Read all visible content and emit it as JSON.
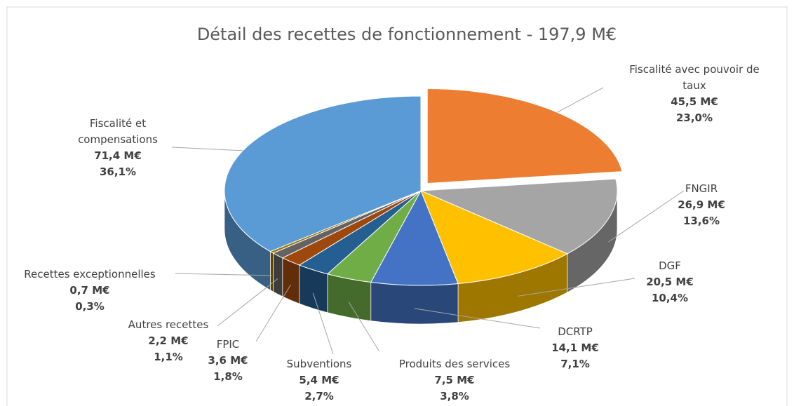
{
  "chart_data": {
    "type": "pie3d",
    "title": "Détail des recettes de fonctionnement - 197,9 M€",
    "categories": [
      "Fiscalité avec pouvoir de taux",
      "FNGIR",
      "DGF",
      "DCRTP",
      "Produits des services",
      "Subventions",
      "FPIC",
      "Autres recettes",
      "Recettes exceptionnelles",
      "Fiscalité et compensations"
    ],
    "values": [
      45.5,
      26.9,
      20.5,
      14.1,
      7.5,
      5.4,
      3.6,
      2.2,
      0.7,
      71.4
    ],
    "value_labels": [
      "45,5 M€",
      "26,9 M€",
      "20,5 M€",
      "14,1 M€",
      "7,5 M€",
      "5,4 M€",
      "3,6 M€",
      "2,2 M€",
      "0,7 M€",
      "71,4 M€"
    ],
    "percents": [
      23.0,
      13.6,
      10.4,
      7.1,
      3.8,
      2.7,
      1.8,
      1.1,
      0.3,
      36.1
    ],
    "percent_labels": [
      "23,0%",
      "13,6%",
      "10,4%",
      "7,1%",
      "3,8%",
      "2,7%",
      "1,8%",
      "1,1%",
      "0,3%",
      "36,1%"
    ],
    "colors": [
      "#ED7D31",
      "#A5A5A5",
      "#FFC000",
      "#4472C4",
      "#70AD47",
      "#255E91",
      "#9E480E",
      "#636363",
      "#997300",
      "#5B9BD5"
    ],
    "exploded": [
      0
    ]
  }
}
